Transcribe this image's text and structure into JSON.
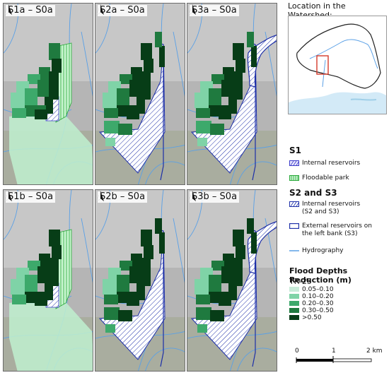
{
  "panels": [
    {
      "label": "S1a – S0a",
      "scenario": "S1",
      "north": "north-arrow-icon"
    },
    {
      "label": "S2a – S0a",
      "scenario": "S2",
      "north": "north-arrow-icon"
    },
    {
      "label": "S3a – S0a",
      "scenario": "S3",
      "north": "north-arrow-icon"
    },
    {
      "label": "S1b – S0a",
      "scenario": "S1",
      "north": "north-arrow-icon"
    },
    {
      "label": "S2b – S0a",
      "scenario": "S2",
      "north": "north-arrow-icon"
    },
    {
      "label": "S3b – S0a",
      "scenario": "S3",
      "north": "north-arrow-icon"
    }
  ],
  "location": {
    "title": "Location in the Watershed:"
  },
  "legend": {
    "s1_title": "S1",
    "internal_reservoirs": "Internal reservoirs",
    "floodable_park": "Floodable park",
    "s2s3_title": "S2 and S3",
    "internal_reservoirs_s2s3_l1": "Internal reservoirs",
    "internal_reservoirs_s2s3_l2": "(S2 and S3)",
    "external_reservoirs_l1": "External reservoirs on",
    "external_reservoirs_l2": "the left bank (S3)",
    "hydrography": "Hydrography",
    "depth_title": "Flood Depths Reduction (m)",
    "tr": "TR-25",
    "classes": [
      {
        "label": "0.05–0.10",
        "color": "#c9ecd9"
      },
      {
        "label": "0.10–0.20",
        "color": "#7fd3a7"
      },
      {
        "label": "0.20–0.30",
        "color": "#3da96b"
      },
      {
        "label": "0.30–0.50",
        "color": "#1f7a3f"
      },
      {
        "label": ">0.50",
        "color": "#073d17"
      }
    ]
  },
  "scale": {
    "tick0": "0",
    "tick1": "1",
    "tick2": "2 km"
  },
  "colors": {
    "hydro": "#5aa0e6",
    "reservoir": "#1d2fa8",
    "park": "#5bd36a",
    "basemap": "#b9b9b9"
  }
}
